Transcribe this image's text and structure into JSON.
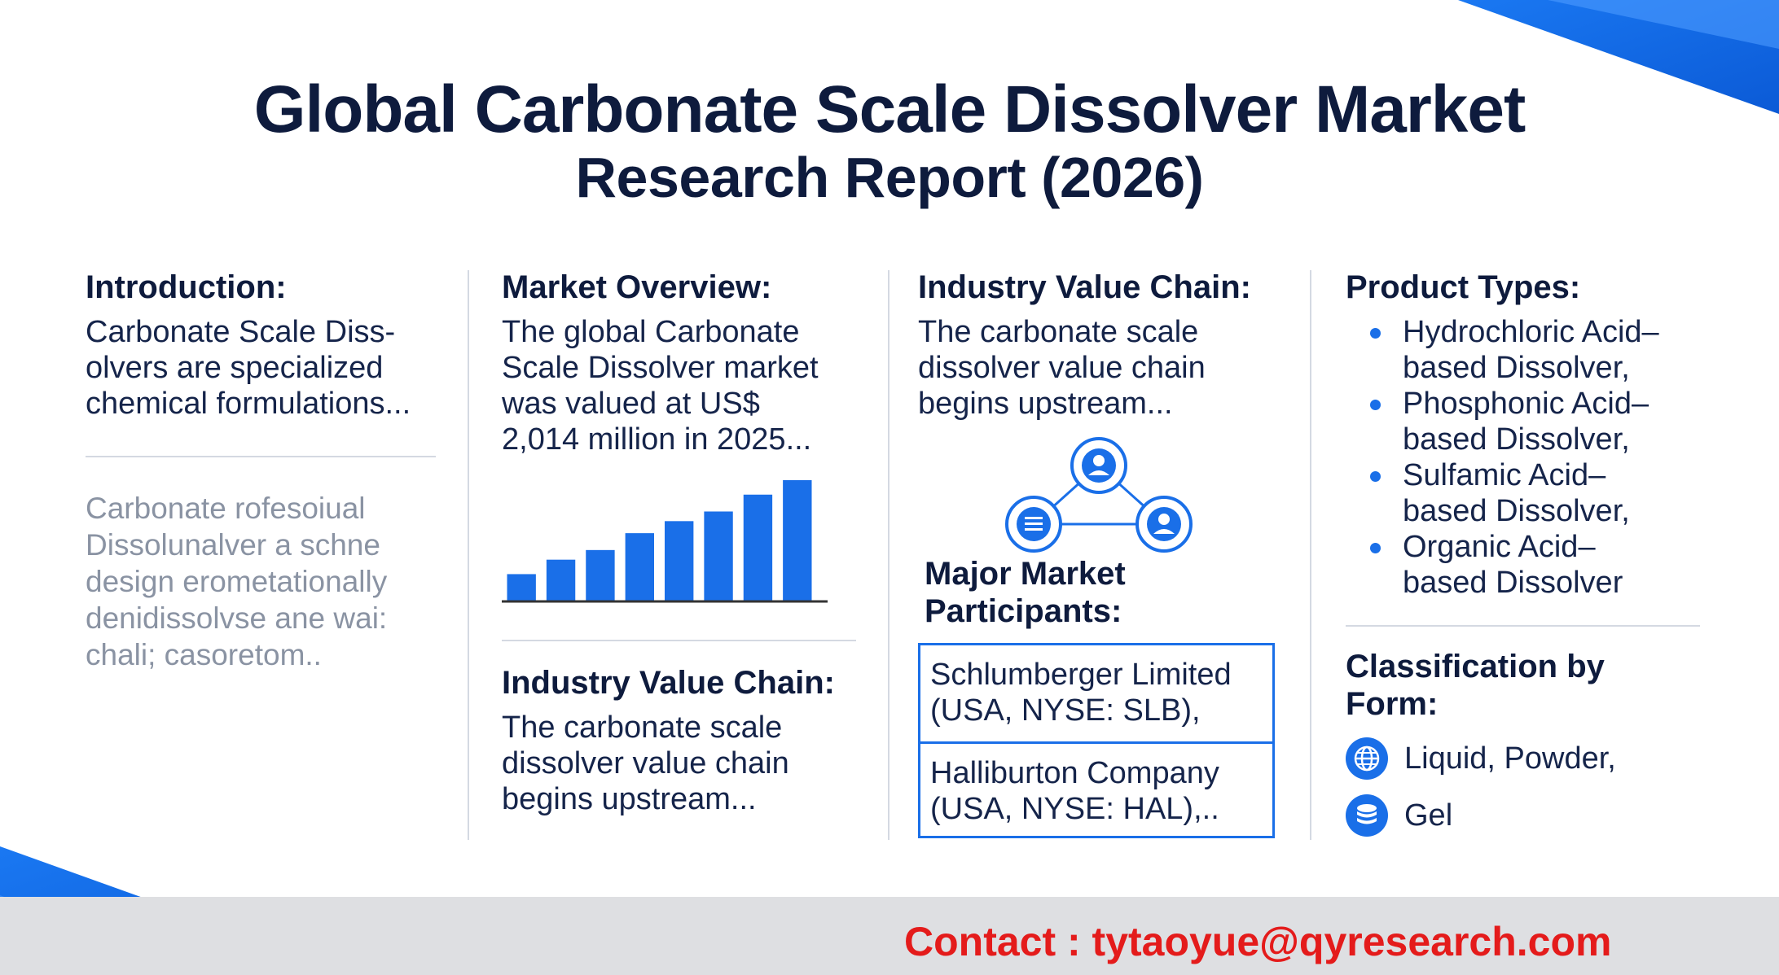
{
  "title": {
    "line1": "Global Carbonate Scale Dissolver Market",
    "line2": "Research Report (2026)"
  },
  "introduction": {
    "heading": "Introduction:",
    "lines": [
      "Carbonate Scale Diss-",
      "olvers are specialized",
      "chemical formulations..."
    ],
    "faded_lines": [
      "Carbonate rofesoiual",
      "Dissolunalver a schne",
      "design erometationally",
      "denidissolvse ane wai:",
      "chali; casoretom.."
    ]
  },
  "market_overview": {
    "heading": "Market Overview:",
    "lines": [
      "The global Carbonate",
      "Scale Dissolver market",
      "was valued at US$",
      "2,014 million in 2025..."
    ],
    "chart_bars": [
      0.22,
      0.34,
      0.42,
      0.56,
      0.66,
      0.74,
      0.88,
      1.0
    ]
  },
  "value_chain_left": {
    "heading": "Industry Value Chain:",
    "lines": [
      "The carbonate scale",
      "dissolver value chain",
      "begins upstream..."
    ]
  },
  "value_chain_right": {
    "heading": "Industry Value Chain:",
    "lines": [
      "The carbonate scale",
      "dissolver value chain",
      "begins upstream..."
    ]
  },
  "participants": {
    "heading_lines": [
      "Major Market",
      "Participants:"
    ],
    "items": [
      [
        "Schlumberger Limited",
        "(USA, NYSE: SLB),"
      ],
      [
        "Halliburton Company",
        "(USA, NYSE: HAL),.."
      ]
    ]
  },
  "product_types": {
    "heading": "Product Types:",
    "items": [
      [
        "Hydrochloric Acid–",
        "based Dissolver,"
      ],
      [
        "Phosphonic Acid–",
        "based Dissolver,"
      ],
      [
        "Sulfamic Acid–",
        "based Dissolver,"
      ],
      [
        "Organic Acid–",
        "based Dissolver"
      ]
    ]
  },
  "classification": {
    "heading": "Classification by Form:",
    "items": [
      {
        "label": "Liquid, Powder,",
        "icon": "globe-icon"
      },
      {
        "label": "Gel",
        "icon": "database-icon"
      }
    ]
  },
  "contact": "Contact : tytaoyue@qyresearch.com",
  "colors": {
    "accent": "#1a6fe8",
    "title": "#0e1b3d",
    "contact": "#e41b1b"
  }
}
